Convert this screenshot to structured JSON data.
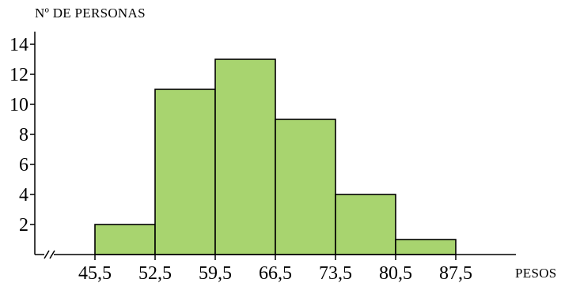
{
  "chart_data": {
    "type": "bar",
    "subtype": "histogram",
    "ylabel": "Nº DE PERSONAS",
    "xlabel": "PESOS",
    "bins": [
      {
        "from": 45.5,
        "to": 52.5,
        "value": 2
      },
      {
        "from": 52.5,
        "to": 59.5,
        "value": 11
      },
      {
        "from": 59.5,
        "to": 66.5,
        "value": 13
      },
      {
        "from": 66.5,
        "to": 73.5,
        "value": 9
      },
      {
        "from": 73.5,
        "to": 80.5,
        "value": 4
      },
      {
        "from": 80.5,
        "to": 87.5,
        "value": 1
      }
    ],
    "x_ticks": [
      "45,5",
      "52,5",
      "59,5",
      "66,5",
      "73,5",
      "80,5",
      "87,5"
    ],
    "x_tick_values": [
      45.5,
      52.5,
      59.5,
      66.5,
      73.5,
      80.5,
      87.5
    ],
    "y_ticks": [
      2,
      4,
      6,
      8,
      10,
      12,
      14
    ],
    "ylim": [
      0,
      15
    ],
    "axis_break": true,
    "grid": false,
    "colors": {
      "bar_fill": "#a8d46f",
      "bar_stroke": "#000000",
      "axis": "#000000"
    }
  }
}
